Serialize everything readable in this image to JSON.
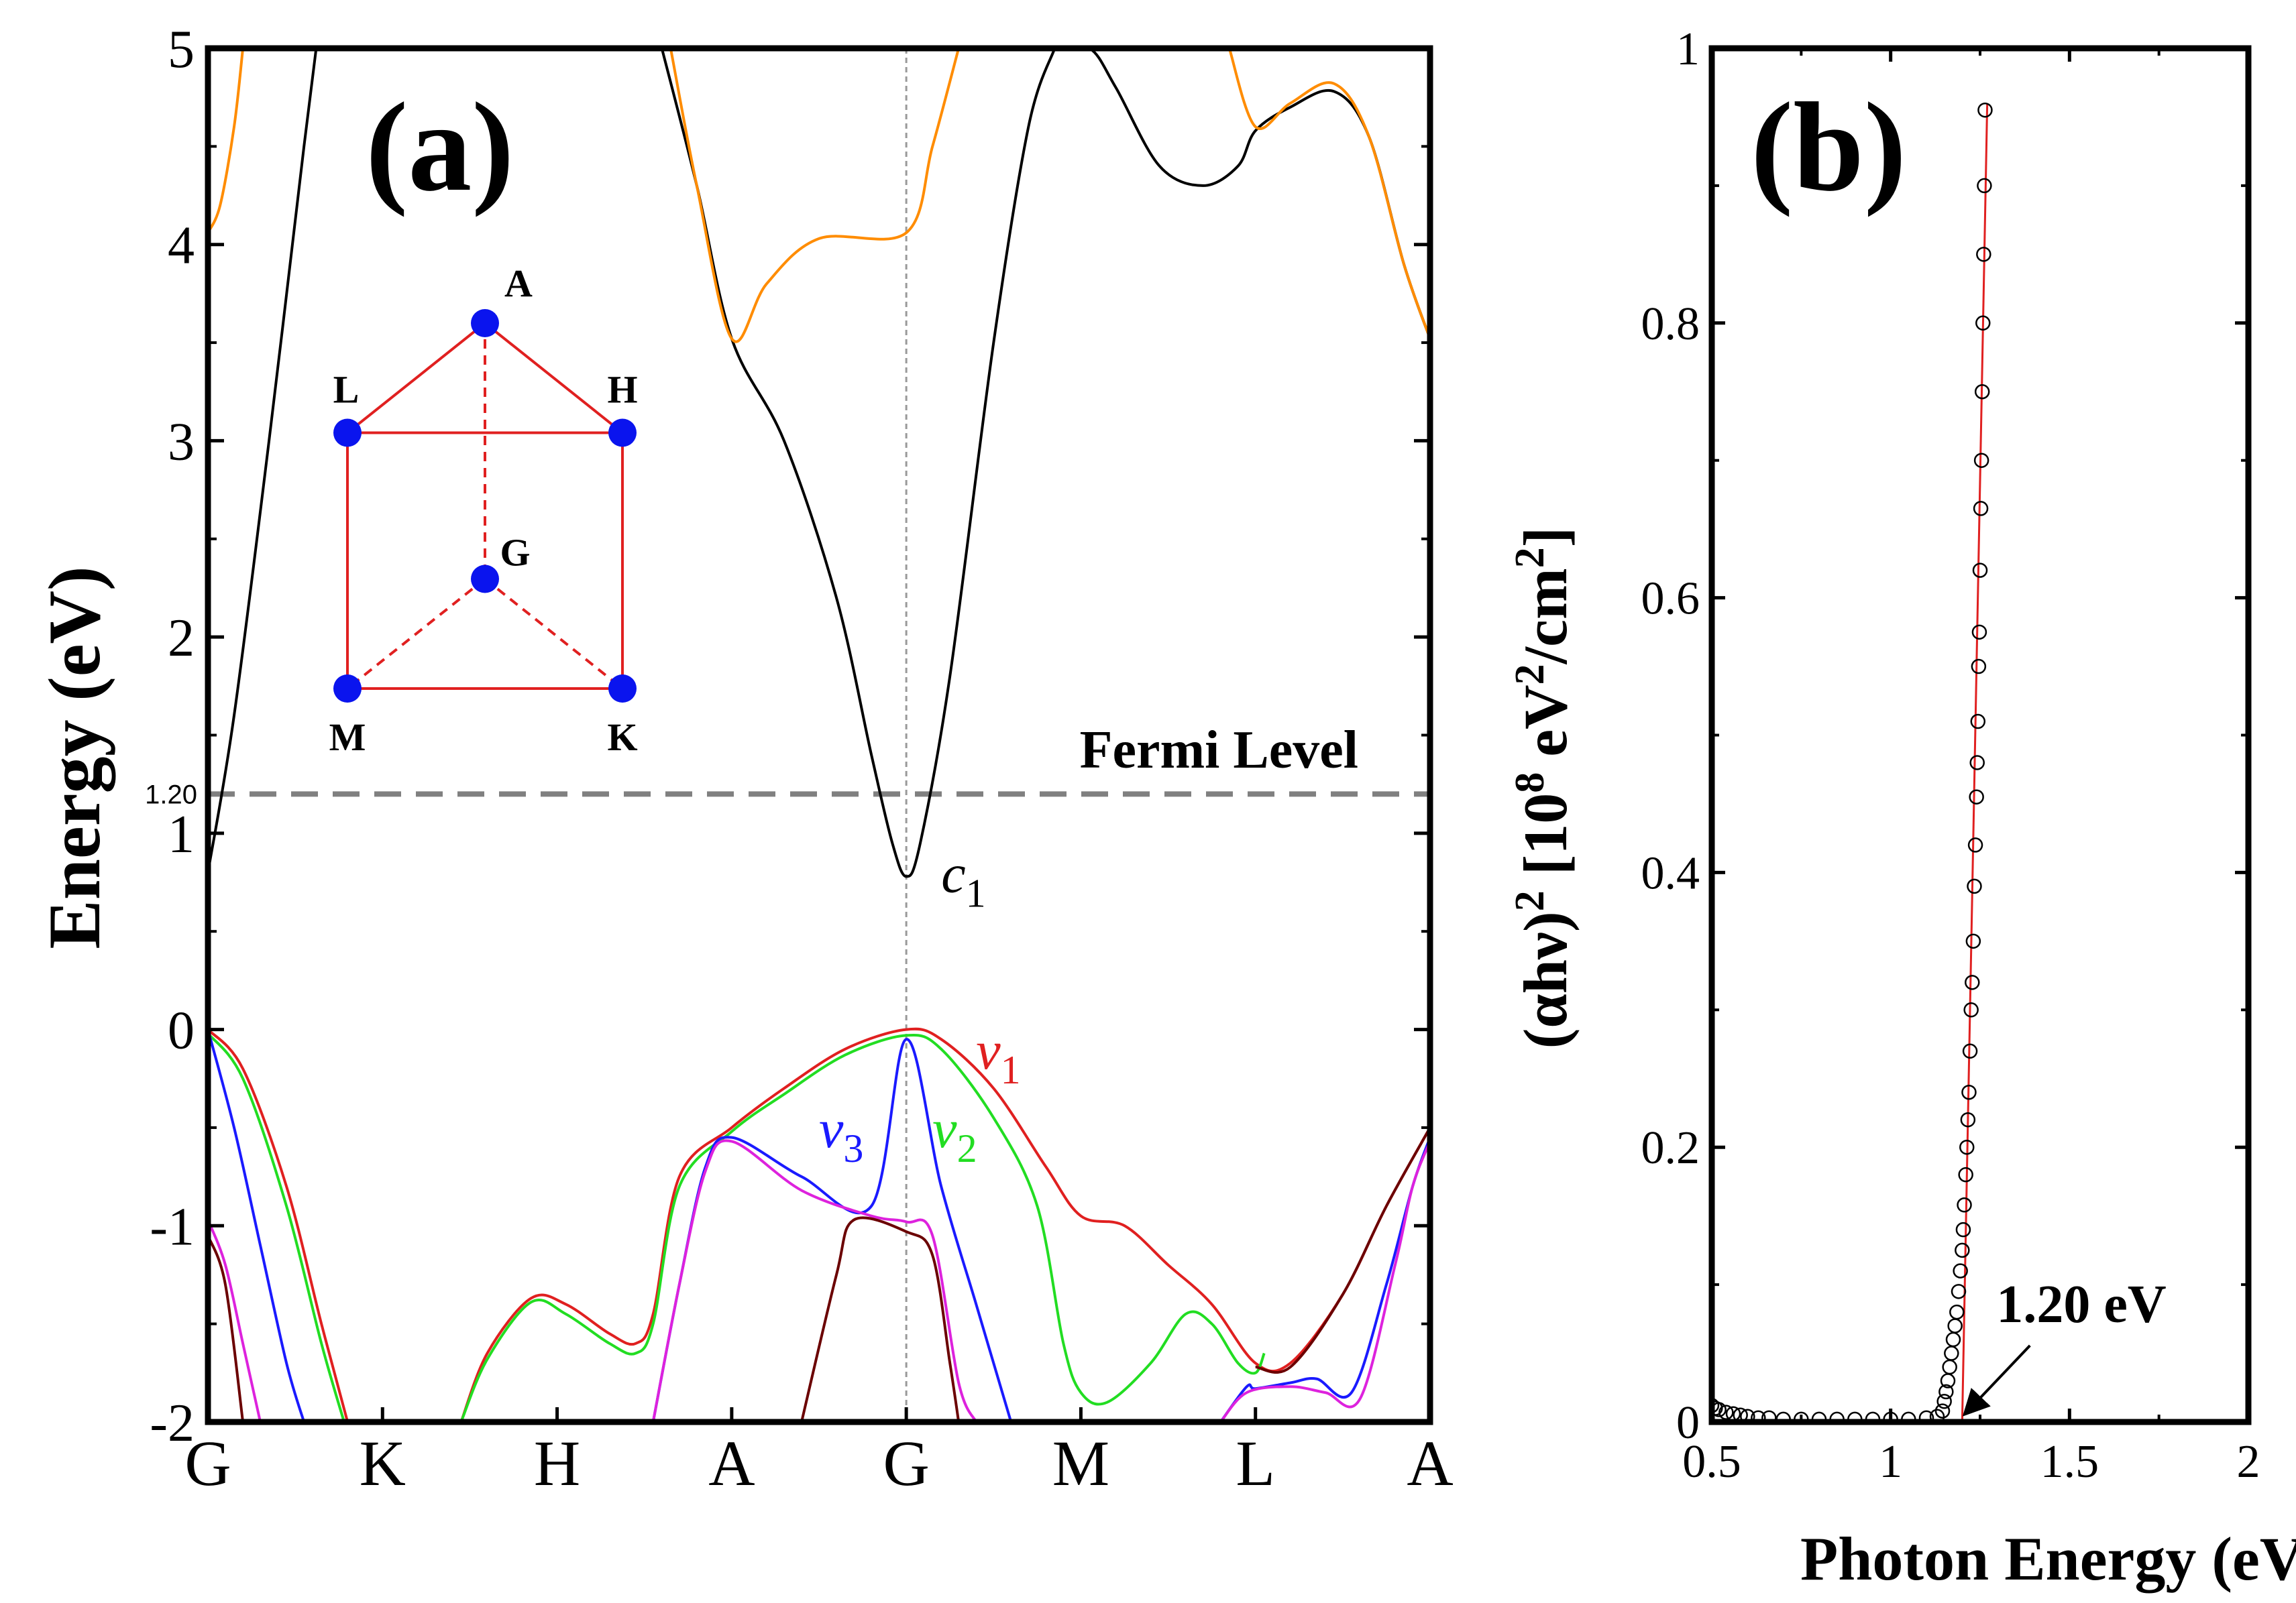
{
  "chart_data": [
    {
      "type": "line",
      "panel_label": "(a)",
      "ylabel": "Energy (eV)",
      "xlabel": "",
      "ylim": [
        -2,
        5
      ],
      "yticks": [
        "-2",
        "-1",
        "0",
        "1",
        "2",
        "3",
        "4",
        "5"
      ],
      "ytick_values": [
        -2,
        -1,
        0,
        1,
        2,
        3,
        4,
        5
      ],
      "extra_ytick": {
        "label": "1.20",
        "value": 1.2
      },
      "k_labels": [
        "G",
        "K",
        "H",
        "A",
        "G",
        "M",
        "L",
        "A"
      ],
      "k_positions": [
        0,
        1,
        2,
        3,
        4,
        5,
        6,
        7
      ],
      "fermi_level": {
        "label": "Fermi Level",
        "value": 1.2
      },
      "annotations": [
        {
          "base": "c",
          "sub": "1",
          "color": "#000000",
          "x": 4.2,
          "y": 0.7
        },
        {
          "base": "v",
          "sub": "1",
          "color": "#e02020",
          "x": 4.4,
          "y": -0.2
        },
        {
          "base": "v",
          "sub": "2",
          "color": "#22dd22",
          "x": 4.15,
          "y": -0.6
        },
        {
          "base": "v",
          "sub": "3",
          "color": "#1a1aff",
          "x": 3.5,
          "y": -0.6
        }
      ],
      "series": [
        {
          "color": "#000000",
          "points": [
            [
              0,
              0.8
            ],
            [
              0.15,
              1.6
            ],
            [
              0.35,
              3.0
            ],
            [
              0.55,
              4.5
            ],
            [
              0.62,
              5.0
            ]
          ]
        },
        {
          "color": "#000000",
          "points": [
            [
              2.6,
              5.0
            ],
            [
              2.8,
              4.3
            ],
            [
              3.0,
              3.52
            ],
            [
              3.3,
              3.0
            ],
            [
              3.6,
              2.2
            ],
            [
              3.8,
              1.4
            ],
            [
              3.92,
              0.95
            ],
            [
              4.0,
              0.78
            ],
            [
              4.08,
              0.95
            ],
            [
              4.25,
              1.8
            ],
            [
              4.5,
              3.5
            ],
            [
              4.7,
              4.6
            ],
            [
              4.85,
              5.0
            ]
          ]
        },
        {
          "color": "#000000",
          "points": [
            [
              4.85,
              5.0
            ],
            [
              5.05,
              5.0
            ],
            [
              5.2,
              4.8
            ],
            [
              5.45,
              4.4
            ],
            [
              5.7,
              4.3
            ],
            [
              5.9,
              4.4
            ],
            [
              6.0,
              4.58
            ],
            [
              6.2,
              4.7
            ],
            [
              6.45,
              4.78
            ],
            [
              6.65,
              4.55
            ],
            [
              6.85,
              3.9
            ],
            [
              7.0,
              3.52
            ]
          ]
        },
        {
          "color": "#ff8c00",
          "points": [
            [
              0,
              4.06
            ],
            [
              0.07,
              4.2
            ],
            [
              0.15,
              4.6
            ],
            [
              0.2,
              5.0
            ]
          ]
        },
        {
          "color": "#ff8c00",
          "points": [
            [
              2.65,
              5.0
            ],
            [
              2.8,
              4.3
            ],
            [
              3.0,
              3.52
            ],
            [
              3.2,
              3.8
            ],
            [
              3.5,
              4.03
            ],
            [
              4.0,
              4.06
            ],
            [
              4.15,
              4.5
            ],
            [
              4.3,
              5.0
            ]
          ]
        },
        {
          "color": "#ff8c00",
          "points": [
            [
              5.85,
              5.0
            ],
            [
              6.0,
              4.6
            ],
            [
              6.2,
              4.72
            ],
            [
              6.45,
              4.82
            ],
            [
              6.65,
              4.55
            ],
            [
              6.85,
              3.9
            ],
            [
              7.0,
              3.52
            ]
          ]
        },
        {
          "color": "#e02020",
          "points": [
            [
              0,
              0
            ],
            [
              0.2,
              -0.2
            ],
            [
              0.45,
              -0.8
            ],
            [
              0.65,
              -1.5
            ],
            [
              0.8,
              -2.0
            ]
          ]
        },
        {
          "color": "#e02020",
          "points": [
            [
              1.45,
              -2.0
            ],
            [
              1.6,
              -1.65
            ],
            [
              1.85,
              -1.37
            ],
            [
              2.05,
              -1.4
            ],
            [
              2.3,
              -1.55
            ],
            [
              2.45,
              -1.6
            ],
            [
              2.55,
              -1.45
            ],
            [
              2.7,
              -0.75
            ],
            [
              3.0,
              -0.5
            ],
            [
              3.3,
              -0.3
            ],
            [
              3.65,
              -0.1
            ],
            [
              4.0,
              0
            ],
            [
              4.2,
              -0.05
            ],
            [
              4.5,
              -0.3
            ],
            [
              4.8,
              -0.7
            ],
            [
              5.0,
              -0.95
            ],
            [
              5.25,
              -1.0
            ],
            [
              5.5,
              -1.2
            ],
            [
              5.75,
              -1.4
            ],
            [
              6.0,
              -1.7
            ],
            [
              6.2,
              -1.7
            ],
            [
              6.5,
              -1.35
            ],
            [
              6.75,
              -0.9
            ],
            [
              7.0,
              -0.5
            ]
          ]
        },
        {
          "color": "#22dd22",
          "points": [
            [
              0,
              -0.02
            ],
            [
              0.2,
              -0.25
            ],
            [
              0.45,
              -0.9
            ],
            [
              0.65,
              -1.6
            ],
            [
              0.78,
              -2.0
            ]
          ]
        },
        {
          "color": "#22dd22",
          "points": [
            [
              1.45,
              -2.0
            ],
            [
              1.6,
              -1.68
            ],
            [
              1.85,
              -1.39
            ],
            [
              2.05,
              -1.45
            ],
            [
              2.3,
              -1.6
            ],
            [
              2.45,
              -1.65
            ],
            [
              2.55,
              -1.5
            ],
            [
              2.7,
              -0.8
            ],
            [
              3.0,
              -0.52
            ],
            [
              3.3,
              -0.33
            ],
            [
              3.65,
              -0.13
            ],
            [
              4.0,
              -0.03
            ],
            [
              4.2,
              -0.1
            ],
            [
              4.5,
              -0.45
            ],
            [
              4.75,
              -0.9
            ],
            [
              4.9,
              -1.6
            ],
            [
              5.0,
              -1.85
            ],
            [
              5.15,
              -1.9
            ],
            [
              5.4,
              -1.7
            ],
            [
              5.6,
              -1.45
            ],
            [
              5.75,
              -1.5
            ],
            [
              5.9,
              -1.7
            ],
            [
              6.0,
              -1.75
            ],
            [
              6.05,
              -1.65
            ]
          ]
        },
        {
          "color": "#1a1aff",
          "points": [
            [
              0,
              0
            ],
            [
              0.15,
              -0.5
            ],
            [
              0.3,
              -1.1
            ],
            [
              0.45,
              -1.7
            ],
            [
              0.55,
              -2.0
            ]
          ]
        },
        {
          "color": "#1a1aff",
          "points": [
            [
              2.55,
              -2.0
            ],
            [
              2.7,
              -1.3
            ],
            [
              2.85,
              -0.7
            ],
            [
              3.0,
              -0.55
            ],
            [
              3.4,
              -0.75
            ],
            [
              3.8,
              -0.9
            ],
            [
              4.0,
              -0.05
            ],
            [
              4.2,
              -0.8
            ],
            [
              4.4,
              -1.4
            ],
            [
              4.6,
              -2.0
            ]
          ]
        },
        {
          "color": "#1a1aff",
          "points": [
            [
              5.8,
              -2.0
            ],
            [
              5.95,
              -1.82
            ],
            [
              6.0,
              -1.83
            ],
            [
              6.2,
              -1.8
            ],
            [
              6.35,
              -1.78
            ],
            [
              6.55,
              -1.85
            ],
            [
              6.75,
              -1.3
            ],
            [
              6.9,
              -0.8
            ],
            [
              7.0,
              -0.55
            ]
          ]
        },
        {
          "color": "#dd22dd",
          "points": [
            [
              0,
              -0.97
            ],
            [
              0.1,
              -1.2
            ],
            [
              0.2,
              -1.6
            ],
            [
              0.3,
              -2.0
            ]
          ]
        },
        {
          "color": "#dd22dd",
          "points": [
            [
              2.55,
              -2.0
            ],
            [
              2.7,
              -1.3
            ],
            [
              2.85,
              -0.72
            ],
            [
              3.0,
              -0.57
            ],
            [
              3.4,
              -0.82
            ],
            [
              3.8,
              -0.95
            ],
            [
              4.0,
              -0.98
            ],
            [
              4.15,
              -1.05
            ],
            [
              4.3,
              -1.8
            ],
            [
              4.4,
              -2.0
            ]
          ]
        },
        {
          "color": "#dd22dd",
          "points": [
            [
              5.8,
              -2.0
            ],
            [
              5.95,
              -1.85
            ],
            [
              6.2,
              -1.82
            ],
            [
              6.4,
              -1.85
            ],
            [
              6.6,
              -1.88
            ],
            [
              6.8,
              -1.2
            ],
            [
              6.9,
              -0.8
            ],
            [
              7.0,
              -0.57
            ]
          ]
        },
        {
          "color": "#6b0000",
          "points": [
            [
              0,
              -1.05
            ],
            [
              0.1,
              -1.3
            ],
            [
              0.2,
              -2.0
            ]
          ]
        },
        {
          "color": "#6b0000",
          "points": [
            [
              3.4,
              -2.0
            ],
            [
              3.6,
              -1.25
            ],
            [
              3.7,
              -0.97
            ],
            [
              4.0,
              -1.03
            ],
            [
              4.15,
              -1.15
            ],
            [
              4.25,
              -1.7
            ],
            [
              4.3,
              -2.0
            ]
          ]
        },
        {
          "color": "#6b0000",
          "points": [
            [
              6.0,
              -1.72
            ],
            [
              6.2,
              -1.72
            ],
            [
              6.5,
              -1.35
            ],
            [
              6.75,
              -0.9
            ],
            [
              7.0,
              -0.5
            ]
          ]
        }
      ],
      "inset": {
        "line_color": "#e02020",
        "point_color": "#0a14ee",
        "points": [
          {
            "label": "A",
            "x": 0.5,
            "y": 0.0
          },
          {
            "label": "L",
            "x": 0.0,
            "y": 0.3
          },
          {
            "label": "H",
            "x": 1.0,
            "y": 0.3
          },
          {
            "label": "G",
            "x": 0.5,
            "y": 0.7
          },
          {
            "label": "M",
            "x": 0.0,
            "y": 1.0
          },
          {
            "label": "K",
            "x": 1.0,
            "y": 1.0
          }
        ],
        "solid_edges": [
          [
            "A",
            "L"
          ],
          [
            "A",
            "H"
          ],
          [
            "L",
            "H"
          ],
          [
            "L",
            "M"
          ],
          [
            "H",
            "K"
          ],
          [
            "M",
            "K"
          ]
        ],
        "dashed_edges": [
          [
            "A",
            "G"
          ],
          [
            "G",
            "M"
          ],
          [
            "G",
            "K"
          ]
        ]
      }
    },
    {
      "type": "scatter",
      "panel_label": "(b)",
      "xlabel": "Photon Energy (eV)",
      "ylabel": "(αhν)² [10⁸ eV²/cm²]",
      "ylabel_parts": {
        "a": "(αhν)",
        "b": "2",
        "c": " [10",
        "d": "8",
        "e": " eV",
        "f": "2",
        "g": "/cm",
        "h": "2",
        "i": "]"
      },
      "xlim": [
        0.5,
        2.0
      ],
      "ylim": [
        0,
        1.0
      ],
      "xticks": [
        "0.5",
        "1",
        "1.5",
        "2"
      ],
      "xtick_values": [
        0.5,
        1.0,
        1.5,
        2.0
      ],
      "yticks": [
        "0",
        "0.2",
        "0.4",
        "0.6",
        "0.8",
        "1"
      ],
      "ytick_values": [
        0,
        0.2,
        0.4,
        0.6,
        0.8,
        1.0
      ],
      "annotation": {
        "label": "1.20 eV",
        "x": 1.2,
        "y": 0
      },
      "fit_line": {
        "color": "#e02020",
        "x1": 1.2,
        "y1": 0.0,
        "x2": 1.27,
        "y2": 0.96
      },
      "points": [
        [
          0.5,
          0.012
        ],
        [
          0.51,
          0.01
        ],
        [
          0.52,
          0.009
        ],
        [
          0.54,
          0.007
        ],
        [
          0.56,
          0.006
        ],
        [
          0.58,
          0.005
        ],
        [
          0.6,
          0.004
        ],
        [
          0.63,
          0.003
        ],
        [
          0.66,
          0.003
        ],
        [
          0.7,
          0.002
        ],
        [
          0.75,
          0.002
        ],
        [
          0.8,
          0.002
        ],
        [
          0.85,
          0.002
        ],
        [
          0.9,
          0.002
        ],
        [
          0.95,
          0.002
        ],
        [
          1.0,
          0.002
        ],
        [
          1.05,
          0.002
        ],
        [
          1.1,
          0.003
        ],
        [
          1.13,
          0.004
        ],
        [
          1.145,
          0.008
        ],
        [
          1.15,
          0.015
        ],
        [
          1.155,
          0.022
        ],
        [
          1.16,
          0.03
        ],
        [
          1.165,
          0.04
        ],
        [
          1.17,
          0.05
        ],
        [
          1.175,
          0.06
        ],
        [
          1.18,
          0.07
        ],
        [
          1.185,
          0.08
        ],
        [
          1.19,
          0.095
        ],
        [
          1.195,
          0.11
        ],
        [
          1.2,
          0.125
        ],
        [
          1.203,
          0.14
        ],
        [
          1.206,
          0.158
        ],
        [
          1.21,
          0.18
        ],
        [
          1.213,
          0.2
        ],
        [
          1.216,
          0.22
        ],
        [
          1.219,
          0.24
        ],
        [
          1.222,
          0.27
        ],
        [
          1.225,
          0.3
        ],
        [
          1.228,
          0.32
        ],
        [
          1.231,
          0.35
        ],
        [
          1.234,
          0.39
        ],
        [
          1.237,
          0.42
        ],
        [
          1.24,
          0.455
        ],
        [
          1.242,
          0.48
        ],
        [
          1.244,
          0.51
        ],
        [
          1.246,
          0.55
        ],
        [
          1.248,
          0.575
        ],
        [
          1.25,
          0.62
        ],
        [
          1.252,
          0.665
        ],
        [
          1.254,
          0.7
        ],
        [
          1.256,
          0.75
        ],
        [
          1.258,
          0.8
        ],
        [
          1.26,
          0.85
        ],
        [
          1.262,
          0.9
        ],
        [
          1.264,
          0.955
        ]
      ]
    }
  ]
}
